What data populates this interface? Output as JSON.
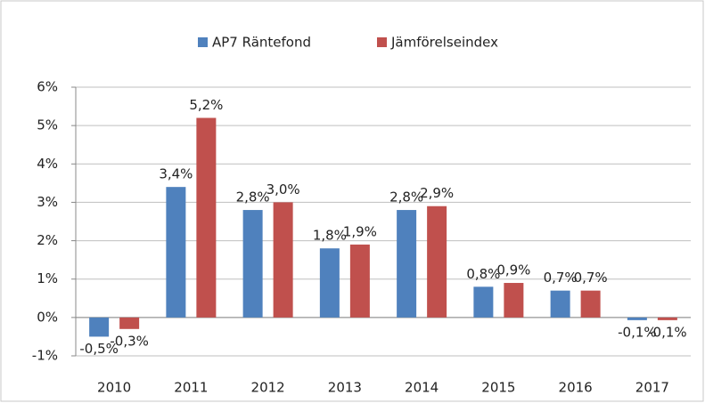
{
  "chart_data": {
    "type": "bar",
    "categories": [
      "2010",
      "2011",
      "2012",
      "2013",
      "2014",
      "2015",
      "2016",
      "2017"
    ],
    "series": [
      {
        "name": "AP7 Räntefond",
        "color": "#4f81bd",
        "values": [
          -0.5,
          3.4,
          2.8,
          1.8,
          2.8,
          0.8,
          0.7,
          -0.07
        ],
        "value_labels": [
          "-0,5%",
          "3,4%",
          "2,8%",
          "1,8%",
          "2,8%",
          "0,8%",
          "0,7%",
          "-0,1%"
        ]
      },
      {
        "name": "Jämförelseindex",
        "color": "#c0504d",
        "values": [
          -0.3,
          5.2,
          3.0,
          1.9,
          2.9,
          0.9,
          0.7,
          -0.07
        ],
        "value_labels": [
          "-0,3%",
          "5,2%",
          "3,0%",
          "1,9%",
          "2,9%",
          "0,9%",
          "0,7%",
          "-0,1%"
        ]
      }
    ],
    "ylim": [
      -1,
      6
    ],
    "yticks": [
      {
        "value": -1,
        "label": "-1%"
      },
      {
        "value": 0,
        "label": "0%"
      },
      {
        "value": 1,
        "label": "1%"
      },
      {
        "value": 2,
        "label": "2%"
      },
      {
        "value": 3,
        "label": "3%"
      },
      {
        "value": 4,
        "label": "4%"
      },
      {
        "value": 5,
        "label": "5%"
      },
      {
        "value": 6,
        "label": "6%"
      }
    ],
    "grid": true,
    "legend": "top"
  }
}
